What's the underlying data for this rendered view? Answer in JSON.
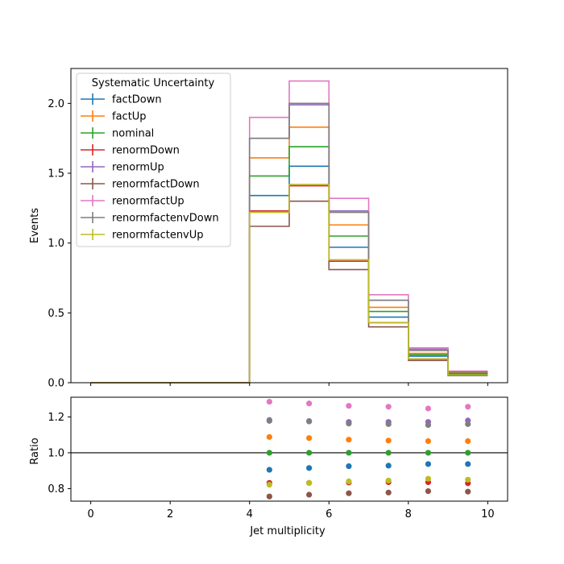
{
  "chart_data": [
    {
      "type": "line",
      "ylabel": "Events",
      "xlim": [
        -0.5,
        10.5
      ],
      "ylim": [
        0,
        2.25
      ],
      "xticks": [
        0,
        2,
        4,
        6,
        8,
        10
      ],
      "yticks": [
        "0.0",
        "0.5",
        "1.0",
        "1.5",
        "2.0"
      ],
      "legend": {
        "title": "Systematic Uncertainty",
        "placement": "top-left"
      },
      "bin_edges": [
        0,
        1,
        2,
        3,
        4,
        5,
        6,
        7,
        8,
        9,
        10
      ],
      "series": [
        {
          "name": "factDown",
          "color": "#1f77b4",
          "values": [
            0,
            0,
            0,
            0,
            1.34,
            1.55,
            0.97,
            0.47,
            0.19,
            0.06
          ]
        },
        {
          "name": "factUp",
          "color": "#ff7f0e",
          "values": [
            0,
            0,
            0,
            0,
            1.61,
            1.83,
            1.13,
            0.54,
            0.21,
            0.07
          ]
        },
        {
          "name": "nominal",
          "color": "#2ca02c",
          "values": [
            0,
            0,
            0,
            0,
            1.48,
            1.69,
            1.05,
            0.51,
            0.2,
            0.065
          ]
        },
        {
          "name": "renormDown",
          "color": "#d62728",
          "values": [
            0,
            0,
            0,
            0,
            1.23,
            1.41,
            0.87,
            0.43,
            0.17,
            0.055
          ]
        },
        {
          "name": "renormUp",
          "color": "#9467bd",
          "values": [
            0,
            0,
            0,
            0,
            1.75,
            1.99,
            1.23,
            0.59,
            0.24,
            0.078
          ]
        },
        {
          "name": "renormfactDown",
          "color": "#8c564b",
          "values": [
            0,
            0,
            0,
            0,
            1.12,
            1.3,
            0.81,
            0.4,
            0.16,
            0.051
          ]
        },
        {
          "name": "renormfactUp",
          "color": "#e377c2",
          "values": [
            0,
            0,
            0,
            0,
            1.9,
            2.16,
            1.32,
            0.63,
            0.25,
            0.083
          ]
        },
        {
          "name": "renormfactenvDown",
          "color": "#7f7f7f",
          "values": [
            0,
            0,
            0,
            0,
            1.75,
            2.0,
            1.22,
            0.59,
            0.23,
            0.077
          ]
        },
        {
          "name": "renormfactenvUp",
          "color": "#bcbd22",
          "values": [
            0,
            0,
            0,
            0,
            1.22,
            1.42,
            0.88,
            0.43,
            0.17,
            0.055
          ]
        }
      ]
    },
    {
      "type": "scatter",
      "xlabel": "Jet multiplicity",
      "ylabel": "Ratio",
      "xlim": [
        -0.5,
        10.5
      ],
      "ylim": [
        0.73,
        1.31
      ],
      "xticks": [
        0,
        2,
        4,
        6,
        8,
        10
      ],
      "yticks": [
        "0.8",
        "1.0",
        "1.2"
      ],
      "reference_line": 1.0,
      "x": [
        4.5,
        5.5,
        6.5,
        7.5,
        8.5,
        9.5
      ],
      "series": [
        {
          "name": "factDown",
          "color": "#1f77b4",
          "values": [
            0.905,
            0.915,
            0.925,
            0.928,
            0.937,
            0.937
          ]
        },
        {
          "name": "factUp",
          "color": "#ff7f0e",
          "values": [
            1.088,
            1.082,
            1.073,
            1.068,
            1.065,
            1.065
          ]
        },
        {
          "name": "nominal",
          "color": "#2ca02c",
          "values": [
            1.0,
            1.0,
            1.0,
            1.0,
            1.0,
            1.0
          ]
        },
        {
          "name": "renormDown",
          "color": "#d62728",
          "values": [
            0.832,
            0.832,
            0.834,
            0.836,
            0.836,
            0.83
          ]
        },
        {
          "name": "renormUp",
          "color": "#9467bd",
          "values": [
            1.183,
            1.177,
            1.172,
            1.172,
            1.172,
            1.18
          ]
        },
        {
          "name": "renormfactDown",
          "color": "#8c564b",
          "values": [
            0.756,
            0.766,
            0.774,
            0.778,
            0.786,
            0.783
          ]
        },
        {
          "name": "renormfactUp",
          "color": "#e377c2",
          "values": [
            1.285,
            1.275,
            1.262,
            1.257,
            1.247,
            1.257
          ]
        },
        {
          "name": "renormfactenvDown",
          "color": "#7f7f7f",
          "values": [
            1.178,
            1.175,
            1.163,
            1.16,
            1.155,
            1.16
          ]
        },
        {
          "name": "renormfactenvUp",
          "color": "#bcbd22",
          "values": [
            0.822,
            0.832,
            0.84,
            0.845,
            0.855,
            0.85
          ]
        }
      ]
    }
  ]
}
